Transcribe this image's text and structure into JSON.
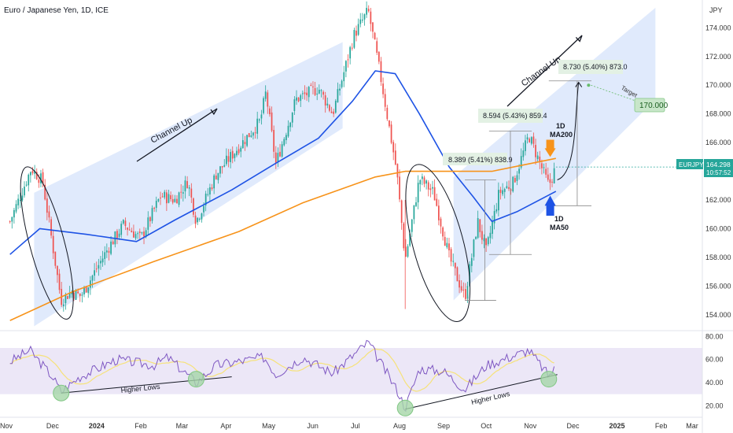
{
  "header": {
    "title": "Euro / Japanese Yen, 1D, ICE",
    "currency": "JPY"
  },
  "price_axis": {
    "ticks": [
      "174.000",
      "172.000",
      "170.000",
      "168.000",
      "166.000",
      "164.000",
      "162.000",
      "160.000",
      "158.000",
      "156.000",
      "154.000"
    ],
    "symbol_label": "EURJPY",
    "current_price": "164.298",
    "countdown": "10:57:52"
  },
  "rsi_axis": {
    "ticks": [
      "80.00",
      "60.00",
      "40.00",
      "20.00"
    ]
  },
  "time_axis": {
    "labels": [
      {
        "text": "Nov",
        "major": false
      },
      {
        "text": "Dec",
        "major": false
      },
      {
        "text": "2024",
        "major": true
      },
      {
        "text": "Feb",
        "major": false
      },
      {
        "text": "Mar",
        "major": false
      },
      {
        "text": "Apr",
        "major": false
      },
      {
        "text": "May",
        "major": false
      },
      {
        "text": "Jun",
        "major": false
      },
      {
        "text": "Jul",
        "major": false
      },
      {
        "text": "Aug",
        "major": false
      },
      {
        "text": "Sep",
        "major": false
      },
      {
        "text": "Oct",
        "major": false
      },
      {
        "text": "Nov",
        "major": false
      },
      {
        "text": "Dec",
        "major": false
      },
      {
        "text": "2025",
        "major": true
      },
      {
        "text": "Feb",
        "major": false
      },
      {
        "text": "Mar",
        "major": false
      }
    ]
  },
  "annotations": {
    "channel_up_1": "Channel Up",
    "channel_up_2": "Channel Up",
    "measure_1": "8.389 (5.41%) 838.9",
    "measure_2": "8.594 (5.43%) 859.4",
    "measure_3": "8.730 (5.40%) 873.0",
    "target_label": "Target",
    "target_value": "170.000",
    "ma200_line1": "1D",
    "ma200_line2": "MA200",
    "ma50_line1": "1D",
    "ma50_line2": "MA50",
    "higher_lows_1": "Higher Lows",
    "higher_lows_2": "Higher Lows"
  },
  "colors": {
    "up": "#26a69a",
    "down": "#ef5350",
    "ma50": "#1e53e5",
    "ma200": "#f7931a",
    "channel": "#dbe6fb",
    "rsi_line": "#7e57c2",
    "rsi_ma": "#f6e27a",
    "rsi_band": "#ece7f7",
    "target_box": "#c8e6c9",
    "target_text": "#1b5e20",
    "current_price_box": "#26a69a"
  },
  "chart_data": {
    "type": "candlestick",
    "symbol": "EURJPY",
    "timeframe": "1D",
    "ylim": [
      153,
      175.5
    ],
    "rsi_ylim": [
      10,
      85
    ],
    "price_path": [
      [
        "2023-11-01",
        160.5
      ],
      [
        "2023-11-16",
        164.2
      ],
      [
        "2023-11-24",
        163.3
      ],
      [
        "2023-12-07",
        155.0
      ],
      [
        "2023-12-14",
        155.6
      ],
      [
        "2023-12-21",
        155.3
      ],
      [
        "2024-01-10",
        158.8
      ],
      [
        "2024-01-20",
        160.3
      ],
      [
        "2024-02-01",
        159.3
      ],
      [
        "2024-02-15",
        162.3
      ],
      [
        "2024-02-25",
        162.0
      ],
      [
        "2024-03-05",
        163.3
      ],
      [
        "2024-03-11",
        160.5
      ],
      [
        "2024-03-25",
        163.8
      ],
      [
        "2024-04-25",
        167.5
      ],
      [
        "2024-04-29",
        169.5
      ],
      [
        "2024-05-06",
        164.5
      ],
      [
        "2024-05-20",
        169.0
      ],
      [
        "2024-06-05",
        169.8
      ],
      [
        "2024-06-15",
        168.0
      ],
      [
        "2024-06-30",
        173.5
      ],
      [
        "2024-07-10",
        175.2
      ],
      [
        "2024-07-18",
        171.0
      ],
      [
        "2024-07-30",
        164.0
      ],
      [
        "2024-08-05",
        157.8
      ],
      [
        "2024-08-15",
        163.5
      ],
      [
        "2024-08-25",
        162.5
      ],
      [
        "2024-09-05",
        158.0
      ],
      [
        "2024-09-16",
        155.2
      ],
      [
        "2024-09-25",
        160.5
      ],
      [
        "2024-10-01",
        158.4
      ],
      [
        "2024-10-10",
        162.5
      ],
      [
        "2024-10-20",
        163.2
      ],
      [
        "2024-10-31",
        166.5
      ],
      [
        "2024-11-08",
        164.5
      ],
      [
        "2024-11-14",
        163.0
      ],
      [
        "2024-11-19",
        164.3
      ]
    ],
    "ma50_path": [
      [
        "2023-11-01",
        158.2
      ],
      [
        "2023-11-22",
        160.0
      ],
      [
        "2023-12-25",
        159.6
      ],
      [
        "2024-01-29",
        159.1
      ],
      [
        "2024-02-25",
        160.6
      ],
      [
        "2024-04-05",
        162.7
      ],
      [
        "2024-05-05",
        164.5
      ],
      [
        "2024-06-05",
        166.3
      ],
      [
        "2024-06-29",
        168.9
      ],
      [
        "2024-07-15",
        171.0
      ],
      [
        "2024-07-29",
        170.8
      ],
      [
        "2024-08-15",
        168.0
      ],
      [
        "2024-09-05",
        164.3
      ],
      [
        "2024-09-22",
        162.2
      ],
      [
        "2024-10-05",
        160.5
      ],
      [
        "2024-10-23",
        161.2
      ],
      [
        "2024-11-19",
        162.6
      ]
    ],
    "ma200_path": [
      [
        "2023-11-01",
        153.6
      ],
      [
        "2023-12-15",
        155.6
      ],
      [
        "2024-02-10",
        157.7
      ],
      [
        "2024-04-10",
        159.8
      ],
      [
        "2024-05-25",
        161.8
      ],
      [
        "2024-07-15",
        163.6
      ],
      [
        "2024-08-05",
        164.0
      ],
      [
        "2024-10-05",
        164.0
      ],
      [
        "2024-11-19",
        164.9
      ]
    ],
    "rsi_path": [
      [
        "2023-11-01",
        58
      ],
      [
        "2023-11-15",
        68
      ],
      [
        "2023-12-01",
        45
      ],
      [
        "2023-12-07",
        32
      ],
      [
        "2023-12-20",
        45
      ],
      [
        "2024-01-15",
        60
      ],
      [
        "2024-02-10",
        55
      ],
      [
        "2024-02-20",
        62
      ],
      [
        "2024-03-11",
        40
      ],
      [
        "2024-03-25",
        55
      ],
      [
        "2024-04-28",
        62
      ],
      [
        "2024-05-06",
        47
      ],
      [
        "2024-05-25",
        62
      ],
      [
        "2024-06-15",
        48
      ],
      [
        "2024-07-10",
        75
      ],
      [
        "2024-07-31",
        32
      ],
      [
        "2024-08-05",
        18
      ],
      [
        "2024-08-15",
        52
      ],
      [
        "2024-09-01",
        50
      ],
      [
        "2024-09-16",
        34
      ],
      [
        "2024-10-01",
        55
      ],
      [
        "2024-10-31",
        68
      ],
      [
        "2024-11-14",
        46
      ],
      [
        "2024-11-19",
        53
      ]
    ],
    "measurements": [
      {
        "change": 8.389,
        "percent": 5.41,
        "ticks": 838.9,
        "from": 155.0,
        "to": 163.4
      },
      {
        "change": 8.594,
        "percent": 5.43,
        "ticks": 859.4,
        "from": 158.2,
        "to": 166.8
      },
      {
        "change": 8.73,
        "percent": 5.4,
        "ticks": 873.0,
        "from": 161.6,
        "to": 170.3
      }
    ],
    "target": 170.0,
    "current_price": 164.298,
    "rsi_band": [
      30,
      70
    ]
  }
}
